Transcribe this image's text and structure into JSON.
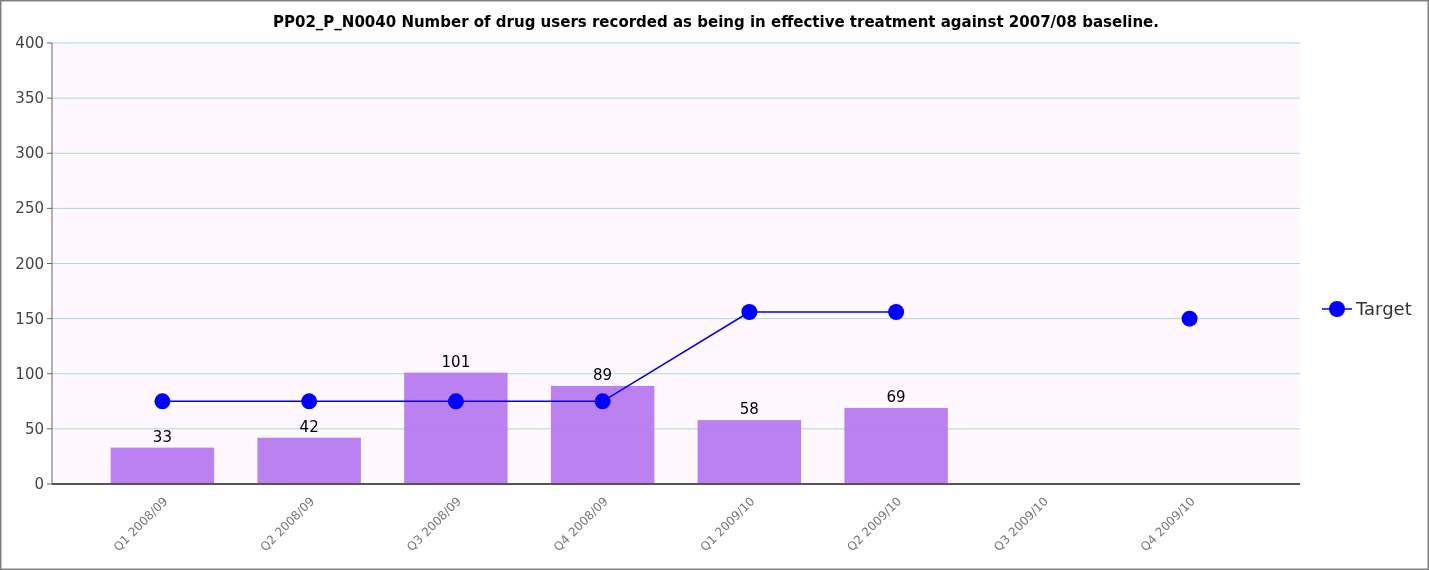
{
  "chart_data": {
    "type": "bar",
    "title": "PP02_P_N0040 Number of drug users recorded as being in effective treatment against 2007/08 baseline.",
    "categories": [
      "Q1 2008/09",
      "Q2 2008/09",
      "Q3 2008/09",
      "Q4 2008/09",
      "Q1 2009/10",
      "Q2 2009/10",
      "Q3 2009/10",
      "Q4 2009/10"
    ],
    "series": [
      {
        "color": "#b87af0",
        "values": [
          33,
          42,
          101,
          89,
          58,
          69,
          null,
          null
        ],
        "value_labels": [
          "33",
          "42",
          "101",
          "89",
          "58",
          "69",
          null,
          null
        ]
      },
      {
        "type": "line",
        "name": "Target",
        "color": "#0000ff",
        "marker": "circle",
        "values": [
          75,
          75,
          75,
          75,
          156,
          156,
          null,
          150
        ]
      }
    ],
    "ylim": [
      0,
      400
    ],
    "yticks": [
      0,
      50,
      100,
      150,
      200,
      250,
      300,
      350,
      400
    ],
    "grid": "y",
    "legend": "right"
  }
}
